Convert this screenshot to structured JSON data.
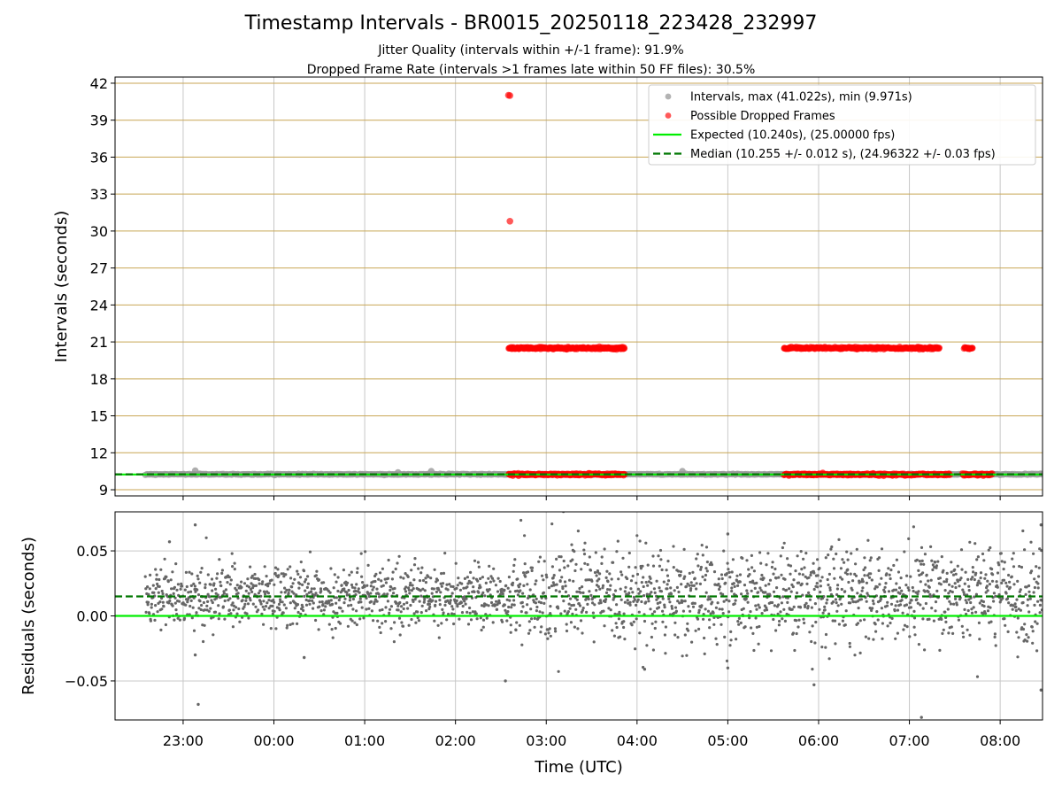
{
  "header": {
    "title": "Timestamp Intervals - BR0015_20250118_223428_232997",
    "subtitle_1": "Jitter Quality (intervals within +/-1 frame): 91.9%",
    "subtitle_2": "Dropped Frame Rate (intervals >1 frames late within 50 FF files): 30.5%"
  },
  "colors": {
    "intervals": "#999999",
    "dropped": "#ff0000",
    "expected": "#00ee00",
    "median": "#007700",
    "residuals": "#666666",
    "hgrid_top": "#c8a654",
    "grid": "#c8c8c8"
  },
  "chart_data": [
    {
      "type": "scatter",
      "xlabel": "",
      "ylabel": "Intervals (seconds)",
      "ylim": [
        8.5,
        42.5
      ],
      "yticks": [
        9,
        12,
        15,
        18,
        21,
        24,
        27,
        30,
        33,
        36,
        39,
        42
      ],
      "xlim": [
        "22:15",
        "08:28"
      ],
      "xticks": [
        "23:00",
        "00:00",
        "01:00",
        "02:00",
        "03:00",
        "04:00",
        "05:00",
        "06:00",
        "07:00",
        "08:00"
      ],
      "legend_position": "top-right",
      "legend": [
        {
          "label": "Intervals, max (41.022s), min (9.971s)",
          "kind": "marker-gray"
        },
        {
          "label": "Possible Dropped Frames",
          "kind": "marker-red"
        },
        {
          "label": "Expected (10.240s), (25.00000 fps)",
          "kind": "line-green"
        },
        {
          "label": "Median (10.255 +/- 0.012 s), (24.96322 +/- 0.03 fps)",
          "kind": "line-dashed-darkgreen"
        }
      ],
      "series": [
        {
          "name": "Intervals, max (41.022s), min (9.971s)",
          "x_range": [
            "22:35",
            "08:28"
          ],
          "typical_value": 10.255,
          "outliers": [
            {
              "x": "23:08",
              "y": 10.55
            },
            {
              "x": "01:22",
              "y": 10.4
            },
            {
              "x": "01:44",
              "y": 10.5
            },
            {
              "x": "04:30",
              "y": 10.5
            }
          ]
        },
        {
          "name": "Possible Dropped Frames",
          "clusters": [
            {
              "x_range": [
                "02:35",
                "03:52"
              ],
              "y": 10.24
            },
            {
              "x_range": [
                "05:37",
                "07:27"
              ],
              "y": 10.24
            },
            {
              "x_range": [
                "07:35",
                "07:55"
              ],
              "y": 10.24
            },
            {
              "x_range": [
                "02:35",
                "03:52"
              ],
              "y": 20.5
            },
            {
              "x_range": [
                "05:37",
                "07:20"
              ],
              "y": 20.5
            },
            {
              "x_range": [
                "07:36",
                "07:42"
              ],
              "y": 20.5
            }
          ],
          "points": [
            {
              "x": "02:35",
              "y": 41.02
            },
            {
              "x": "02:36",
              "y": 41.0
            },
            {
              "x": "02:36",
              "y": 30.8
            }
          ]
        },
        {
          "name": "Expected (10.240s), (25.00000 fps)",
          "y": 10.24
        },
        {
          "name": "Median (10.255 +/- 0.012 s), (24.96322 +/- 0.03 fps)",
          "y": 10.255
        }
      ]
    },
    {
      "type": "scatter",
      "xlabel": "Time (UTC)",
      "ylabel": "Residuals (seconds)",
      "ylim": [
        -0.08,
        0.08
      ],
      "yticks": [
        0.05,
        0.0,
        -0.05
      ],
      "ytick_labels": [
        "0.05",
        "0.00",
        "−0.05"
      ],
      "xlim": [
        "22:15",
        "08:28"
      ],
      "xticks": [
        "23:00",
        "00:00",
        "01:00",
        "02:00",
        "03:00",
        "04:00",
        "05:00",
        "06:00",
        "07:00",
        "08:00"
      ],
      "series": [
        {
          "name": "Residuals",
          "x_range": [
            "22:35",
            "08:28"
          ],
          "center": 0.015,
          "typical_spread": 0.012,
          "outliers": [
            {
              "x": "22:51",
              "y": 0.057
            },
            {
              "x": "23:08",
              "y": 0.07
            },
            {
              "x": "23:08",
              "y": -0.03
            },
            {
              "x": "23:10",
              "y": -0.068
            },
            {
              "x": "00:20",
              "y": -0.032
            },
            {
              "x": "02:33",
              "y": -0.05
            },
            {
              "x": "04:05",
              "y": -0.041
            },
            {
              "x": "05:00",
              "y": 0.063
            },
            {
              "x": "05:00",
              "y": -0.04
            },
            {
              "x": "05:57",
              "y": -0.053
            },
            {
              "x": "07:08",
              "y": -0.078
            },
            {
              "x": "08:27",
              "y": 0.07
            },
            {
              "x": "08:27",
              "y": -0.057
            }
          ]
        },
        {
          "name": "Expected",
          "y": 0.0
        },
        {
          "name": "Median",
          "y": 0.015
        }
      ]
    }
  ]
}
